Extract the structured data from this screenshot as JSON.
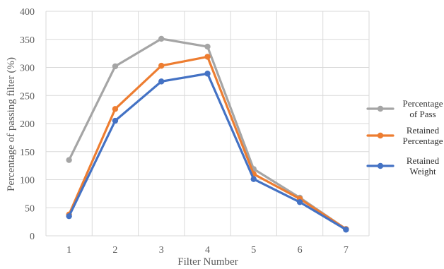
{
  "chart_data": {
    "type": "line",
    "title": "",
    "xlabel": "Filter Number",
    "ylabel": "Percentage of passing filter (%)",
    "x": [
      1,
      2,
      3,
      4,
      5,
      6,
      7
    ],
    "ylim": [
      0,
      400
    ],
    "yticks": [
      0,
      50,
      100,
      150,
      200,
      250,
      300,
      350,
      400
    ],
    "grid": true,
    "legend_position": "right",
    "series": [
      {
        "name": "Percentage of Pass",
        "legend_lines": [
          "Percentage",
          "of Pass"
        ],
        "color": "#A5A5A5",
        "values": [
          135,
          302,
          351,
          337,
          119,
          68,
          12
        ]
      },
      {
        "name": "Retained Percentage",
        "legend_lines": [
          "Retained",
          "Percentage"
        ],
        "color": "#ED7D31",
        "values": [
          38,
          226,
          303,
          319,
          110,
          66,
          12
        ]
      },
      {
        "name": "Retained Weight",
        "legend_lines": [
          "Retained",
          "Weight"
        ],
        "color": "#4472C4",
        "values": [
          35,
          205,
          275,
          289,
          101,
          60,
          11
        ]
      }
    ]
  }
}
